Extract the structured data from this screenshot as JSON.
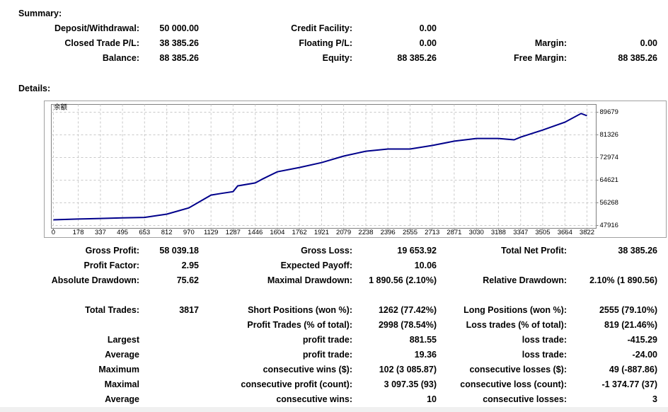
{
  "summary": {
    "title": "Summary:",
    "rows": [
      {
        "left": {
          "label": "Deposit/Withdrawal:",
          "value": "50 000.00"
        },
        "middle": {
          "label": "Credit Facility:",
          "value": "0.00"
        }
      },
      {
        "left": {
          "label": "Closed Trade P/L:",
          "value": "38 385.26"
        },
        "middle": {
          "label": "Floating P/L:",
          "value": "0.00"
        },
        "right": {
          "label": "Margin:",
          "value": "0.00"
        }
      },
      {
        "left": {
          "label": "Balance:",
          "value": "88 385.26"
        },
        "middle": {
          "label": "Equity:",
          "value": "88 385.26"
        },
        "right": {
          "label": "Free Margin:",
          "value": "88 385.26"
        }
      }
    ]
  },
  "details": {
    "title": "Details:",
    "rows": [
      {
        "left": {
          "label": "Gross Profit:",
          "value": "58 039.18"
        },
        "middle": {
          "label": "Gross Loss:",
          "value": "19 653.92"
        },
        "right": {
          "label": "Total Net Profit:",
          "value": "38 385.26"
        }
      },
      {
        "left": {
          "label": "Profit Factor:",
          "value": "2.95"
        },
        "middle": {
          "label": "Expected Payoff:",
          "value": "10.06"
        }
      },
      {
        "left": {
          "label": "Absolute Drawdown:",
          "value": "75.62"
        },
        "middle": {
          "label": "Maximal Drawdown:",
          "value": "1 890.56 (2.10%)"
        },
        "right": {
          "label": "Relative Drawdown:",
          "value": "2.10% (1 890.56)"
        }
      },
      {
        "left": {
          "label": "Total Trades:",
          "value": "3817"
        },
        "middle": {
          "label": "Short Positions (won %):",
          "value": "1262 (77.42%)"
        },
        "right": {
          "label": "Long Positions (won %):",
          "value": "2555 (79.10%)"
        }
      },
      {
        "middle": {
          "label": "Profit Trades (% of total):",
          "value": "2998 (78.54%)"
        },
        "right": {
          "label": "Loss trades (% of total):",
          "value": "819 (21.46%)"
        }
      },
      {
        "left": {
          "label": "Largest"
        },
        "middle": {
          "label": "profit trade:",
          "value": "881.55"
        },
        "right": {
          "label": "loss trade:",
          "value": "-415.29"
        }
      },
      {
        "left": {
          "label": "Average"
        },
        "middle": {
          "label": "profit trade:",
          "value": "19.36"
        },
        "right": {
          "label": "loss trade:",
          "value": "-24.00"
        }
      },
      {
        "left": {
          "label": "Maximum"
        },
        "middle": {
          "label": "consecutive wins ($):",
          "value": "102 (3 085.87)"
        },
        "right": {
          "label": "consecutive losses ($):",
          "value": "49 (-887.86)"
        }
      },
      {
        "left": {
          "label": "Maximal"
        },
        "middle": {
          "label": "consecutive profit (count):",
          "value": "3 097.35 (93)"
        },
        "right": {
          "label": "consecutive loss (count):",
          "value": "-1 374.77 (37)"
        }
      },
      {
        "left": {
          "label": "Average"
        },
        "middle": {
          "label": "consecutive wins:",
          "value": "10"
        },
        "right": {
          "label": "consecutive losses:",
          "value": "3"
        }
      }
    ]
  },
  "chart_data": {
    "type": "line",
    "title": "余额",
    "x": [
      0,
      178,
      337,
      495,
      653,
      812,
      970,
      1129,
      1200,
      1287,
      1320,
      1446,
      1500,
      1604,
      1762,
      1921,
      2079,
      2238,
      2396,
      2555,
      2713,
      2871,
      3030,
      3188,
      3300,
      3347,
      3505,
      3664,
      3780,
      3822
    ],
    "series": [
      {
        "color": "#00008b",
        "values": [
          50000,
          50300,
          50500,
          50700,
          50900,
          52100,
          54400,
          59100,
          59700,
          60400,
          62500,
          63600,
          65100,
          67700,
          69300,
          71100,
          73500,
          75300,
          76100,
          76100,
          77400,
          79000,
          80000,
          80000,
          79500,
          80500,
          83100,
          86000,
          89200,
          88385
        ]
      }
    ],
    "xlim": [
      -15,
      3888
    ],
    "ylim": [
      46870,
      92550
    ],
    "xticks": [
      0,
      178,
      337,
      495,
      653,
      812,
      970,
      1129,
      1287,
      1446,
      1604,
      1762,
      1921,
      2079,
      2238,
      2396,
      2555,
      2713,
      2871,
      3030,
      3188,
      3347,
      3505,
      3664,
      3822
    ],
    "yticks": [
      47916,
      56268,
      64621,
      72974,
      81326,
      89679
    ],
    "grid": true
  }
}
